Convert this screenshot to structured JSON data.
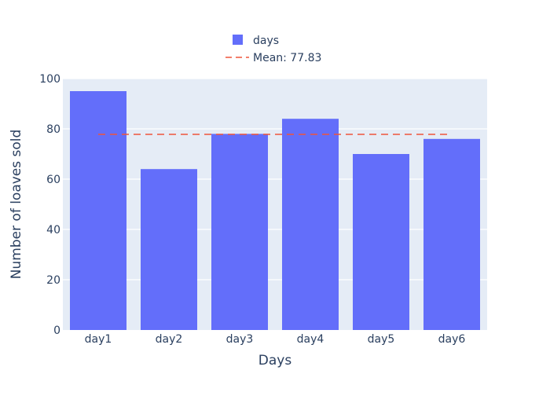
{
  "chart_data": {
    "type": "bar",
    "categories": [
      "day1",
      "day2",
      "day3",
      "day4",
      "day5",
      "day6"
    ],
    "series": [
      {
        "name": "days",
        "values": [
          95,
          64,
          78,
          84,
          70,
          76
        ],
        "color": "#636efa"
      }
    ],
    "mean_line": {
      "label": "Mean: 77.83",
      "value": 77.83,
      "color": "#ef553b",
      "style": "dashed"
    },
    "xlabel": "Days",
    "ylabel": "Number of loaves sold",
    "ylim": [
      0,
      100
    ],
    "yticks": [
      0,
      20,
      40,
      60,
      80,
      100
    ],
    "grid": true,
    "legend_position": "top-center",
    "plot_background": "#e5ecf6",
    "text_color": "#2a3f5f"
  }
}
